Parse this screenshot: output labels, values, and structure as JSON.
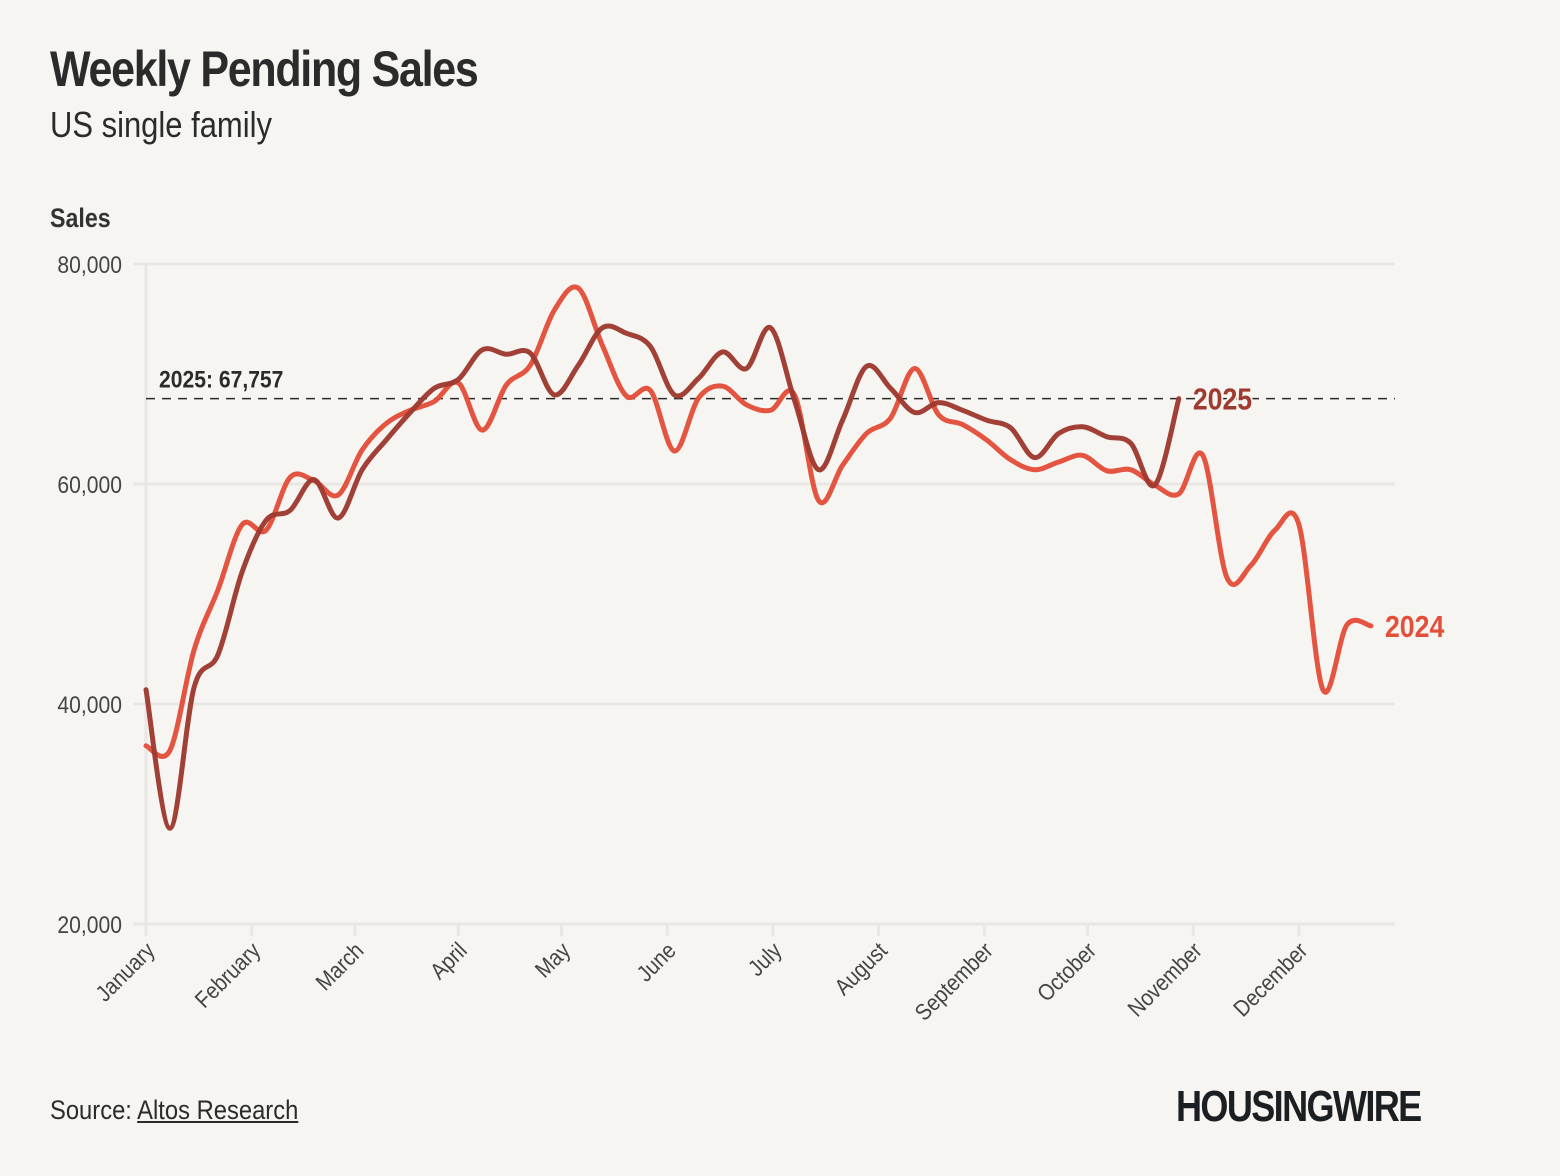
{
  "header": {
    "title": "Weekly Pending Sales",
    "subtitle": "US single family"
  },
  "footer": {
    "source_prefix": "Source: ",
    "source_link": "Altos Research",
    "logo": "HOUSINGWIRE"
  },
  "colors": {
    "background": "#f6f5f1",
    "series_2024": "#e34f3b",
    "series_2025": "#9e3a30",
    "grid": "#e8e7e4",
    "text": "#2b2b2b"
  },
  "chart_data": {
    "type": "line",
    "title": "Weekly Pending Sales",
    "subtitle": "US single family",
    "xlabel": "",
    "ylabel": "Sales",
    "ylim": [
      20000,
      80000
    ],
    "yticks": [
      20000,
      40000,
      60000,
      80000
    ],
    "ytick_labels": [
      "20,000",
      "40,000",
      "60,000",
      "80,000"
    ],
    "x_unit": "week of year",
    "xlim": [
      1,
      53
    ],
    "xticks": [
      1,
      5.4,
      9.7,
      14,
      18.3,
      22.7,
      27.1,
      31.5,
      35.9,
      40.2,
      44.6,
      49
    ],
    "xtick_labels": [
      "January",
      "February",
      "March",
      "April",
      "May",
      "June",
      "July",
      "August",
      "September",
      "October",
      "November",
      "December"
    ],
    "grid": true,
    "reference_line": {
      "value": 67757,
      "label": "2025: 67,757",
      "style": "dashed"
    },
    "series": [
      {
        "name": "2024",
        "label": "2024",
        "color": "#e34f3b",
        "x": [
          1,
          2,
          3,
          4,
          5,
          6,
          7,
          8,
          9,
          10,
          11,
          12,
          13,
          14,
          15,
          16,
          17,
          18,
          19,
          20,
          21,
          22,
          23,
          24,
          25,
          26,
          27,
          28,
          29,
          30,
          31,
          32,
          33,
          34,
          35,
          36,
          37,
          38,
          39,
          40,
          41,
          42,
          43,
          44,
          45,
          46,
          47,
          48,
          49,
          50,
          51,
          52
        ],
        "values": [
          36200,
          35800,
          44900,
          50400,
          56300,
          55800,
          60600,
          60300,
          59000,
          63100,
          65500,
          66700,
          67500,
          69200,
          64900,
          69000,
          70800,
          75800,
          77800,
          72600,
          68000,
          68500,
          63000,
          67800,
          68900,
          67200,
          66700,
          68100,
          58500,
          61700,
          64600,
          66000,
          70500,
          66300,
          65400,
          64000,
          62200,
          61300,
          62000,
          62600,
          61200,
          61300,
          59900,
          59100,
          62600,
          51500,
          52600,
          55800,
          56300,
          41300,
          47200,
          47100
        ]
      },
      {
        "name": "2025",
        "label": "2025",
        "color": "#9e3a30",
        "x": [
          1,
          2,
          3,
          4,
          5,
          6,
          7,
          8,
          9,
          10,
          11,
          12,
          13,
          14,
          15,
          16,
          17,
          18,
          19,
          20,
          21,
          22,
          23,
          24,
          25,
          26,
          27,
          28,
          29,
          30,
          31,
          32,
          33,
          34,
          35,
          36,
          37,
          38,
          39,
          40,
          41,
          42,
          43,
          44
        ],
        "values": [
          41300,
          28700,
          41500,
          44500,
          52000,
          56700,
          57600,
          60400,
          56900,
          61300,
          64000,
          66500,
          68700,
          69500,
          72200,
          71800,
          71900,
          68100,
          70800,
          74200,
          73700,
          72500,
          68100,
          69600,
          72000,
          70500,
          74200,
          67600,
          61300,
          65800,
          70700,
          68700,
          66500,
          67400,
          66700,
          65800,
          65100,
          62400,
          64600,
          65200,
          64300,
          63700,
          59900,
          67757
        ]
      }
    ],
    "legend": "inline end-of-line labels"
  }
}
